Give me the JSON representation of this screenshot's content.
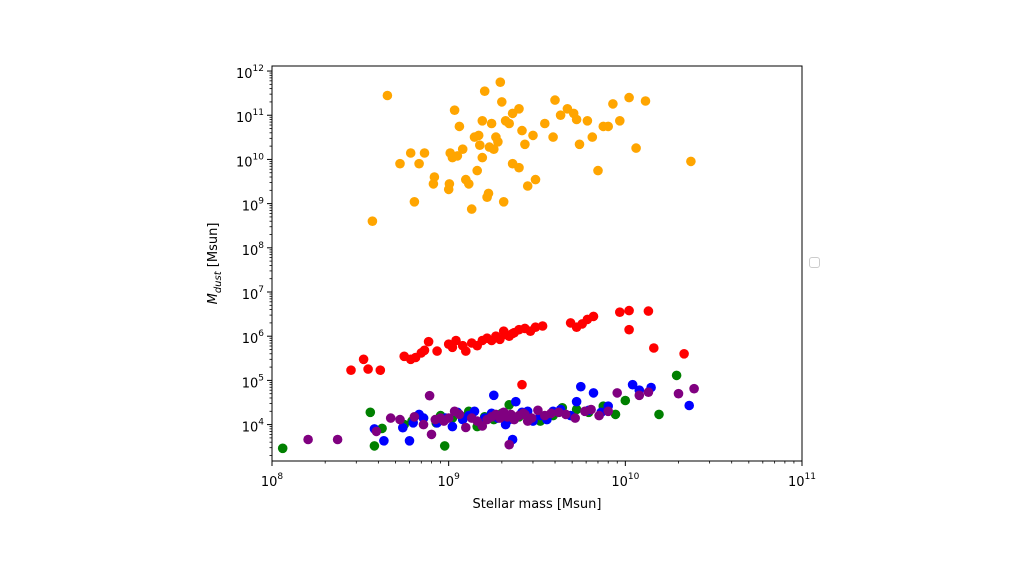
{
  "chart_data": {
    "type": "scatter",
    "xlabel": "Stellar mass [Msun]",
    "ylabel_prefix": "M",
    "ylabel_sub": "dust",
    "ylabel_suffix": " [Msun]",
    "xscale": "log",
    "yscale": "log",
    "xlim": [
      100000000.0,
      100000000000.0
    ],
    "ylim": [
      1500.0,
      1300000000000.0
    ],
    "grid": false,
    "legend": "empty box, right of plot",
    "x_ticks": [
      {
        "base": "10",
        "exp": "8",
        "value": 100000000.0
      },
      {
        "base": "10",
        "exp": "9",
        "value": 1000000000.0
      },
      {
        "base": "10",
        "exp": "10",
        "value": 10000000000.0
      },
      {
        "base": "10",
        "exp": "11",
        "value": 100000000000.0
      }
    ],
    "y_ticks": [
      {
        "base": "10",
        "exp": "4",
        "value": 10000.0
      },
      {
        "base": "10",
        "exp": "5",
        "value": 100000.0
      },
      {
        "base": "10",
        "exp": "6",
        "value": 1000000.0
      },
      {
        "base": "10",
        "exp": "7",
        "value": 10000000.0
      },
      {
        "base": "10",
        "exp": "8",
        "value": 100000000.0
      },
      {
        "base": "10",
        "exp": "9",
        "value": 1000000000.0
      },
      {
        "base": "10",
        "exp": "10",
        "value": 10000000000.0
      },
      {
        "base": "10",
        "exp": "11",
        "value": 100000000000.0
      },
      {
        "base": "10",
        "exp": "12",
        "value": 1000000000000.0
      }
    ],
    "series": [
      {
        "color": "#ffa500",
        "points": [
          [
            450000000.0,
            280000000000.0
          ],
          [
            370000000.0,
            400000000.0
          ],
          [
            530000000.0,
            8000000000.0
          ],
          [
            610000000.0,
            14000000000.0
          ],
          [
            640000000.0,
            1100000000.0
          ],
          [
            680000000.0,
            8000000000.0
          ],
          [
            730000000.0,
            14000000000.0
          ],
          [
            830000000.0,
            4000000000.0
          ],
          [
            820000000.0,
            2800000000.0
          ],
          [
            1000000000.0,
            2100000000.0
          ],
          [
            1010000000.0,
            2800000000.0
          ],
          [
            1020000000.0,
            14000000000.0
          ],
          [
            1050000000.0,
            11000000000.0
          ],
          [
            1080000000.0,
            130000000000.0
          ],
          [
            1120000000.0,
            12000000000.0
          ],
          [
            1150000000.0,
            56000000000.0
          ],
          [
            1200000000.0,
            17000000000.0
          ],
          [
            1250000000.0,
            3500000000.0
          ],
          [
            1300000000.0,
            2800000000.0
          ],
          [
            1350000000.0,
            750000000.0
          ],
          [
            1400000000.0,
            32000000000.0
          ],
          [
            1450000000.0,
            5600000000.0
          ],
          [
            1480000000.0,
            35000000000.0
          ],
          [
            1500000000.0,
            21000000000.0
          ],
          [
            1550000000.0,
            75000000000.0
          ],
          [
            1550000000.0,
            11000000000.0
          ],
          [
            1600000000.0,
            350000000000.0
          ],
          [
            1650000000.0,
            1400000000.0
          ],
          [
            1700000000.0,
            19000000000.0
          ],
          [
            1750000000.0,
            65000000000.0
          ],
          [
            1800000000.0,
            17000000000.0
          ],
          [
            1850000000.0,
            32000000000.0
          ],
          [
            1900000000.0,
            25000000000.0
          ],
          [
            1960000000.0,
            560000000000.0
          ],
          [
            2000000000.0,
            200000000000.0
          ],
          [
            2050000000.0,
            1100000000.0
          ],
          [
            2100000000.0,
            75000000000.0
          ],
          [
            2200000000.0,
            65000000000.0
          ],
          [
            2300000000.0,
            8000000000.0
          ],
          [
            2500000000.0,
            140000000000.0
          ],
          [
            2500000000.0,
            6500000000.0
          ],
          [
            2600000000.0,
            45000000000.0
          ],
          [
            2700000000.0,
            22000000000.0
          ],
          [
            2800000000.0,
            2500000000.0
          ],
          [
            3000000000.0,
            35000000000.0
          ],
          [
            3100000000.0,
            3500000000.0
          ],
          [
            3500000000.0,
            65000000000.0
          ],
          [
            3900000000.0,
            32000000000.0
          ],
          [
            4000000000.0,
            220000000000.0
          ],
          [
            4300000000.0,
            100000000000.0
          ],
          [
            4700000000.0,
            140000000000.0
          ],
          [
            5300000000.0,
            80000000000.0
          ],
          [
            5500000000.0,
            22000000000.0
          ],
          [
            6100000000.0,
            75000000000.0
          ],
          [
            6500000000.0,
            32000000000.0
          ],
          [
            7000000000.0,
            5600000000.0
          ],
          [
            7500000000.0,
            56000000000.0
          ],
          [
            8000000000.0,
            56000000000.0
          ],
          [
            8500000000.0,
            180000000000.0
          ],
          [
            9300000000.0,
            75000000000.0
          ],
          [
            10500000000.0,
            250000000000.0
          ],
          [
            11500000000.0,
            18000000000.0
          ],
          [
            13000000000.0,
            210000000000.0
          ],
          [
            23500000000.0,
            9000000000.0
          ],
          [
            1680000000.0,
            1700000000.0
          ],
          [
            5100000000.0,
            110000000000.0
          ],
          [
            2300000000.0,
            110000000000.0
          ]
        ]
      },
      {
        "color": "#ff0000",
        "points": [
          [
            280000000.0,
            170000.0
          ],
          [
            330000000.0,
            300000.0
          ],
          [
            350000000.0,
            180000.0
          ],
          [
            410000000.0,
            170000.0
          ],
          [
            560000000.0,
            350000.0
          ],
          [
            610000000.0,
            300000.0
          ],
          [
            650000000.0,
            330000.0
          ],
          [
            700000000.0,
            420000.0
          ],
          [
            730000000.0,
            480000.0
          ],
          [
            770000000.0,
            750000.0
          ],
          [
            860000000.0,
            460000.0
          ],
          [
            1000000000.0,
            660000.0
          ],
          [
            1050000000.0,
            560000.0
          ],
          [
            1100000000.0,
            800000.0
          ],
          [
            1200000000.0,
            610000.0
          ],
          [
            1250000000.0,
            460000.0
          ],
          [
            1350000000.0,
            700000.0
          ],
          [
            1450000000.0,
            610000.0
          ],
          [
            1550000000.0,
            800000.0
          ],
          [
            1650000000.0,
            900000.0
          ],
          [
            1750000000.0,
            800000.0
          ],
          [
            1850000000.0,
            1000000.0
          ],
          [
            1950000000.0,
            850000.0
          ],
          [
            2100000000.0,
            1100000.0
          ],
          [
            2200000000.0,
            1000000.0
          ],
          [
            2350000000.0,
            1200000.0
          ],
          [
            2500000000.0,
            1400000.0
          ],
          [
            2700000000.0,
            1500000.0
          ],
          [
            2900000000.0,
            1300000.0
          ],
          [
            3100000000.0,
            1600000.0
          ],
          [
            3400000000.0,
            1700000.0
          ],
          [
            2600000000.0,
            80000.0
          ],
          [
            4900000000.0,
            2000000.0
          ],
          [
            5300000000.0,
            1600000.0
          ],
          [
            5700000000.0,
            1900000.0
          ],
          [
            6100000000.0,
            2400000.0
          ],
          [
            6600000000.0,
            2800000.0
          ],
          [
            9300000000.0,
            3500000.0
          ],
          [
            10500000000.0,
            3800000.0
          ],
          [
            13500000000.0,
            3700000.0
          ],
          [
            10500000000.0,
            1400000.0
          ],
          [
            14500000000.0,
            540000.0
          ],
          [
            21500000000.0,
            400000.0
          ],
          [
            2050000000.0,
            1300000.0
          ],
          [
            2300000000.0,
            1150000.0
          ]
        ]
      },
      {
        "color": "#008000",
        "points": [
          [
            115000000.0,
            2900.0
          ],
          [
            360000000.0,
            19000.0
          ],
          [
            380000000.0,
            3300.0
          ],
          [
            420000000.0,
            8200.0
          ],
          [
            560000000.0,
            10000.0
          ],
          [
            620000000.0,
            12000.0
          ],
          [
            720000000.0,
            14000.0
          ],
          [
            850000000.0,
            11000.0
          ],
          [
            900000000.0,
            16000.0
          ],
          [
            950000000.0,
            3300.0
          ],
          [
            1050000000.0,
            14000.0
          ],
          [
            1200000000.0,
            15000.0
          ],
          [
            1300000000.0,
            20000.0
          ],
          [
            1450000000.0,
            9000.0
          ],
          [
            1600000000.0,
            15000.0
          ],
          [
            1800000000.0,
            13000.0
          ],
          [
            2000000000.0,
            18000.0
          ],
          [
            2200000000.0,
            28000.0
          ],
          [
            2500000000.0,
            15000.0
          ],
          [
            2800000000.0,
            16000.0
          ],
          [
            3300000000.0,
            12000.0
          ],
          [
            3900000000.0,
            16000.0
          ],
          [
            4400000000.0,
            24000.0
          ],
          [
            5300000000.0,
            22000.0
          ],
          [
            6200000000.0,
            19000.0
          ],
          [
            7500000000.0,
            26000.0
          ],
          [
            8800000000.0,
            17000.0
          ],
          [
            10000000000.0,
            35000.0
          ],
          [
            15500000000.0,
            17000.0
          ],
          [
            19500000000.0,
            130000.0
          ]
        ]
      },
      {
        "color": "#0000ff",
        "points": [
          [
            380000000.0,
            8000.0
          ],
          [
            430000000.0,
            4300.0
          ],
          [
            550000000.0,
            8500.0
          ],
          [
            600000000.0,
            4300.0
          ],
          [
            630000000.0,
            11000.0
          ],
          [
            680000000.0,
            17000.0
          ],
          [
            720000000.0,
            14000.0
          ],
          [
            860000000.0,
            11000.0
          ],
          [
            960000000.0,
            14000.0
          ],
          [
            1050000000.0,
            9000.0
          ],
          [
            1120000000.0,
            19000.0
          ],
          [
            1200000000.0,
            13000.0
          ],
          [
            1300000000.0,
            16000.0
          ],
          [
            1400000000.0,
            20000.0
          ],
          [
            1520000000.0,
            11000.0
          ],
          [
            1600000000.0,
            14000.0
          ],
          [
            1750000000.0,
            18000.0
          ],
          [
            1800000000.0,
            46000.0
          ],
          [
            1900000000.0,
            14000.0
          ],
          [
            2050000000.0,
            16000.0
          ],
          [
            2200000000.0,
            13000.0
          ],
          [
            2300000000.0,
            4600.0
          ],
          [
            2400000000.0,
            33000.0
          ],
          [
            2600000000.0,
            19000.0
          ],
          [
            2800000000.0,
            20000.0
          ],
          [
            3000000000.0,
            12000.0
          ],
          [
            3300000000.0,
            16000.0
          ],
          [
            3600000000.0,
            13000.0
          ],
          [
            3900000000.0,
            20000.0
          ],
          [
            4300000000.0,
            22000.0
          ],
          [
            4900000000.0,
            16000.0
          ],
          [
            5300000000.0,
            33000.0
          ],
          [
            5600000000.0,
            72000.0
          ],
          [
            6200000000.0,
            21000.0
          ],
          [
            6600000000.0,
            52000.0
          ],
          [
            7300000000.0,
            19000.0
          ],
          [
            8000000000.0,
            26000.0
          ],
          [
            11000000000.0,
            80000.0
          ],
          [
            12000000000.0,
            60000.0
          ],
          [
            14000000000.0,
            69000.0
          ],
          [
            23000000000.0,
            27000.0
          ],
          [
            2100000000.0,
            10000.0
          ]
        ]
      },
      {
        "color": "#800080",
        "points": [
          [
            160000000.0,
            4600.0
          ],
          [
            235000000.0,
            4600.0
          ],
          [
            390000000.0,
            7000.0
          ],
          [
            470000000.0,
            14000.0
          ],
          [
            530000000.0,
            13000.0
          ],
          [
            640000000.0,
            15000.0
          ],
          [
            720000000.0,
            10000.0
          ],
          [
            780000000.0,
            45000.0
          ],
          [
            800000000.0,
            6000.0
          ],
          [
            840000000.0,
            13000.0
          ],
          [
            900000000.0,
            14000.0
          ],
          [
            940000000.0,
            12000.0
          ],
          [
            1000000000.0,
            14000.0
          ],
          [
            1080000000.0,
            20000.0
          ],
          [
            1150000000.0,
            17000.0
          ],
          [
            1250000000.0,
            8600.0
          ],
          [
            1350000000.0,
            14000.0
          ],
          [
            1450000000.0,
            12000.0
          ],
          [
            1550000000.0,
            9300.0
          ],
          [
            1650000000.0,
            13000.0
          ],
          [
            1750000000.0,
            15000.0
          ],
          [
            1850000000.0,
            17000.0
          ],
          [
            1950000000.0,
            14000.0
          ],
          [
            2050000000.0,
            19000.0
          ],
          [
            2150000000.0,
            15000.0
          ],
          [
            2250000000.0,
            17000.0
          ],
          [
            2350000000.0,
            13000.0
          ],
          [
            2200000000.0,
            3500.0
          ],
          [
            2500000000.0,
            16000.0
          ],
          [
            2650000000.0,
            18000.0
          ],
          [
            2800000000.0,
            12000.0
          ],
          [
            2950000000.0,
            14000.0
          ],
          [
            3200000000.0,
            21000.0
          ],
          [
            3500000000.0,
            16000.0
          ],
          [
            3800000000.0,
            18000.0
          ],
          [
            4200000000.0,
            19000.0
          ],
          [
            4600000000.0,
            17000.0
          ],
          [
            5200000000.0,
            14000.0
          ],
          [
            5900000000.0,
            20000.0
          ],
          [
            6400000000.0,
            22000.0
          ],
          [
            7100000000.0,
            16000.0
          ],
          [
            8000000000.0,
            20000.0
          ],
          [
            9000000000.0,
            52000.0
          ],
          [
            12000000000.0,
            46000.0
          ],
          [
            13500000000.0,
            54000.0
          ],
          [
            20000000000.0,
            50000.0
          ],
          [
            24500000000.0,
            65000.0
          ],
          [
            2700000000.0,
            17000.0
          ]
        ]
      }
    ]
  }
}
